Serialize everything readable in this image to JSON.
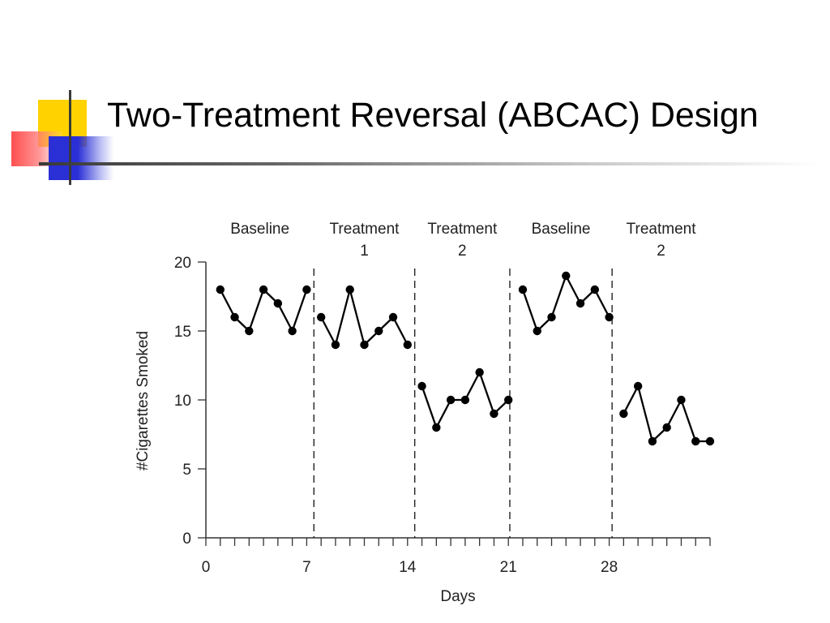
{
  "slide": {
    "title": "Two-Treatment Reversal (ABCAC) Design"
  },
  "colors": {
    "deco_yellow": "#ffd200",
    "deco_red": "#ff3b3b",
    "deco_blue": "#2a2fd6",
    "rule_dark": "#3a3a3a",
    "data": "#000000"
  },
  "chart_data": {
    "type": "line",
    "xlabel": "Days",
    "ylabel": "#Cigarettes Smoked",
    "xlim": [
      0,
      35
    ],
    "ylim": [
      0,
      20
    ],
    "x_ticks": [
      0,
      7,
      14,
      21,
      28
    ],
    "y_ticks": [
      0,
      5,
      10,
      15,
      20
    ],
    "grid": false,
    "phase_dividers": [
      7.5,
      14.5,
      21.1,
      28.2
    ],
    "phases": [
      {
        "label_lines": [
          "Baseline"
        ],
        "x_start": 0,
        "x_end": 7.5
      },
      {
        "label_lines": [
          "Treatment",
          "1"
        ],
        "x_start": 7.5,
        "x_end": 14.5
      },
      {
        "label_lines": [
          "Treatment",
          "2"
        ],
        "x_start": 14.5,
        "x_end": 21.1
      },
      {
        "label_lines": [
          "Baseline"
        ],
        "x_start": 21.1,
        "x_end": 28.2
      },
      {
        "label_lines": [
          "Treatment",
          "2"
        ],
        "x_start": 28.2,
        "x_end": 35
      }
    ],
    "series": [
      {
        "x": [
          1,
          2,
          3,
          4,
          5,
          6,
          7
        ],
        "y": [
          18,
          16,
          15,
          18,
          17,
          15,
          18
        ]
      },
      {
        "x": [
          8,
          9,
          10,
          11,
          12,
          13,
          14
        ],
        "y": [
          16,
          14,
          18,
          14,
          15,
          16,
          14
        ]
      },
      {
        "x": [
          15,
          16,
          17,
          18,
          19,
          20,
          21
        ],
        "y": [
          11,
          8,
          10,
          10,
          12,
          9,
          10
        ]
      },
      {
        "x": [
          22,
          23,
          24,
          25,
          26,
          27,
          28
        ],
        "y": [
          18,
          15,
          16,
          19,
          17,
          18,
          16
        ]
      },
      {
        "x": [
          29,
          30,
          31,
          32,
          33,
          34,
          35
        ],
        "y": [
          9,
          11,
          7,
          8,
          10,
          7,
          7
        ]
      }
    ]
  }
}
